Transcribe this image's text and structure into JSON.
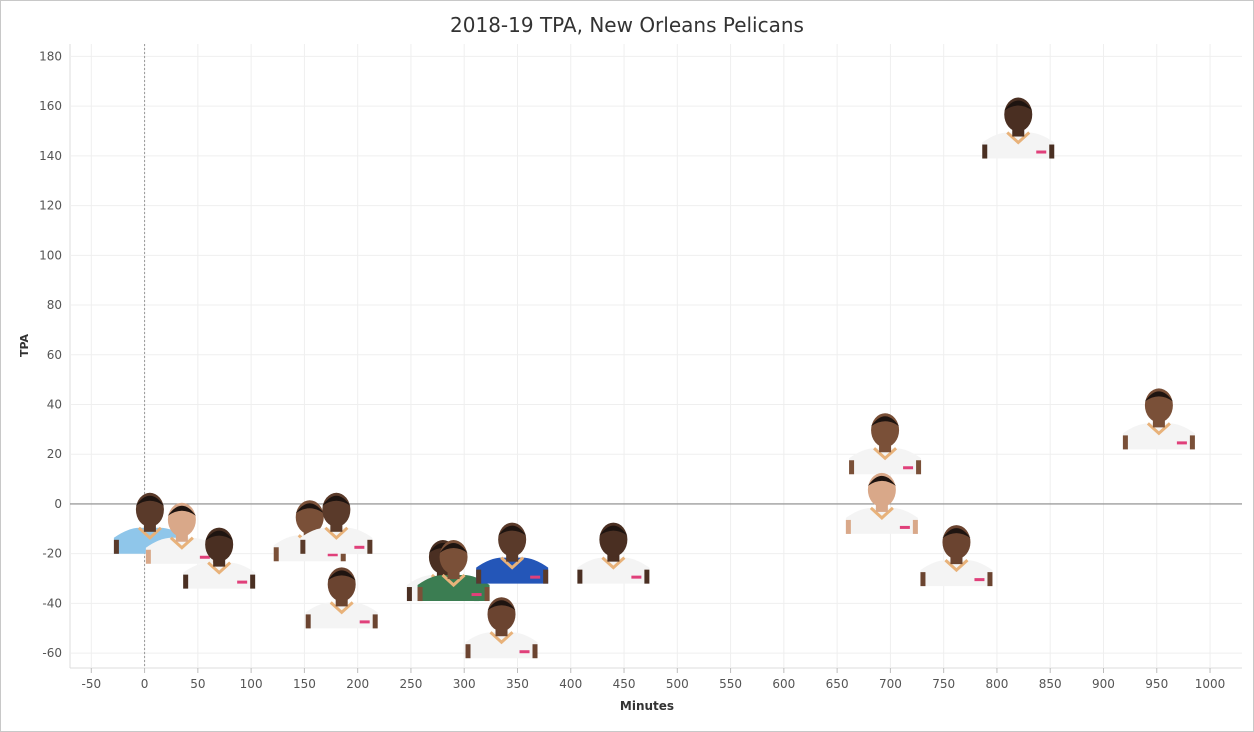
{
  "chart_data": {
    "type": "scatter",
    "title": "2018-19 TPA, New Orleans Pelicans",
    "xlabel": "Minutes",
    "ylabel": "TPA",
    "xlim": [
      -70,
      1030
    ],
    "ylim": [
      -66,
      185
    ],
    "x_ticks": [
      -50,
      0,
      50,
      100,
      150,
      200,
      250,
      300,
      350,
      400,
      450,
      500,
      550,
      600,
      650,
      700,
      750,
      800,
      850,
      900,
      950,
      1000
    ],
    "y_ticks": [
      180,
      160,
      140,
      120,
      100,
      80,
      60,
      40,
      20,
      0,
      -20,
      -40,
      -60
    ],
    "grid": true,
    "reference_lines": {
      "x": 0,
      "y": 0
    },
    "marker": "player-headshot",
    "points": [
      {
        "x": 5,
        "y": -8,
        "jersey": "light-blue"
      },
      {
        "x": 35,
        "y": -12,
        "jersey": "white"
      },
      {
        "x": 70,
        "y": -22,
        "jersey": "white"
      },
      {
        "x": 155,
        "y": -11,
        "jersey": "white"
      },
      {
        "x": 180,
        "y": -8,
        "jersey": "white"
      },
      {
        "x": 185,
        "y": -38,
        "jersey": "white"
      },
      {
        "x": 280,
        "y": -27,
        "jersey": "white"
      },
      {
        "x": 290,
        "y": -27,
        "jersey": "green"
      },
      {
        "x": 345,
        "y": -20,
        "jersey": "blue"
      },
      {
        "x": 335,
        "y": -50,
        "jersey": "white"
      },
      {
        "x": 440,
        "y": -20,
        "jersey": "white"
      },
      {
        "x": 695,
        "y": 24,
        "jersey": "white"
      },
      {
        "x": 692,
        "y": 0,
        "jersey": "white"
      },
      {
        "x": 762,
        "y": -21,
        "jersey": "white"
      },
      {
        "x": 820,
        "y": 151,
        "jersey": "white"
      },
      {
        "x": 952,
        "y": 34,
        "jersey": "white"
      }
    ]
  },
  "colors": {
    "grid": "#efefef",
    "zero_line": "#8a8a8a",
    "axis_text": "#555555",
    "skin": "#5a3a2a",
    "jersey_white": "#f4f4f4",
    "jersey_trim": "#e8b27a"
  }
}
